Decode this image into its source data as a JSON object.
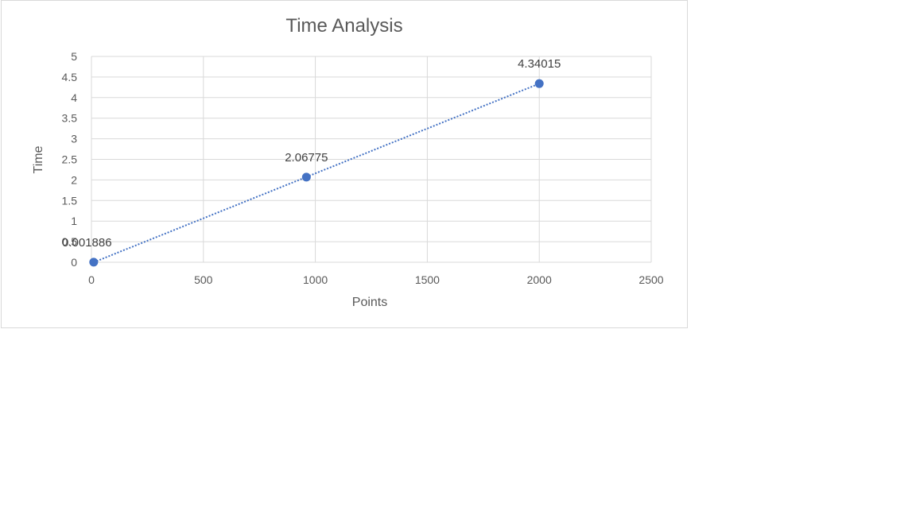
{
  "chart_data": {
    "type": "scatter",
    "title": "Time Analysis",
    "xlabel": "Points",
    "ylabel": "Time",
    "xlim": [
      0,
      2500
    ],
    "ylim": [
      0,
      5
    ],
    "xticks": [
      "0",
      "500",
      "1000",
      "1500",
      "2000",
      "2500"
    ],
    "yticks": [
      "0",
      "0.5",
      "1",
      "1.5",
      "2",
      "2.5",
      "3",
      "3.5",
      "4",
      "4.5",
      "5"
    ],
    "grid": true,
    "legend": "none",
    "series": [
      {
        "points": [
          {
            "x": 10,
            "y": 0.001886,
            "label": "0.001886"
          },
          {
            "x": 960,
            "y": 2.06775,
            "label": "2.06775"
          },
          {
            "x": 2000,
            "y": 4.34015,
            "label": "4.34015"
          }
        ],
        "color": "#4472c4",
        "trendline": "linear-dotted"
      }
    ]
  }
}
